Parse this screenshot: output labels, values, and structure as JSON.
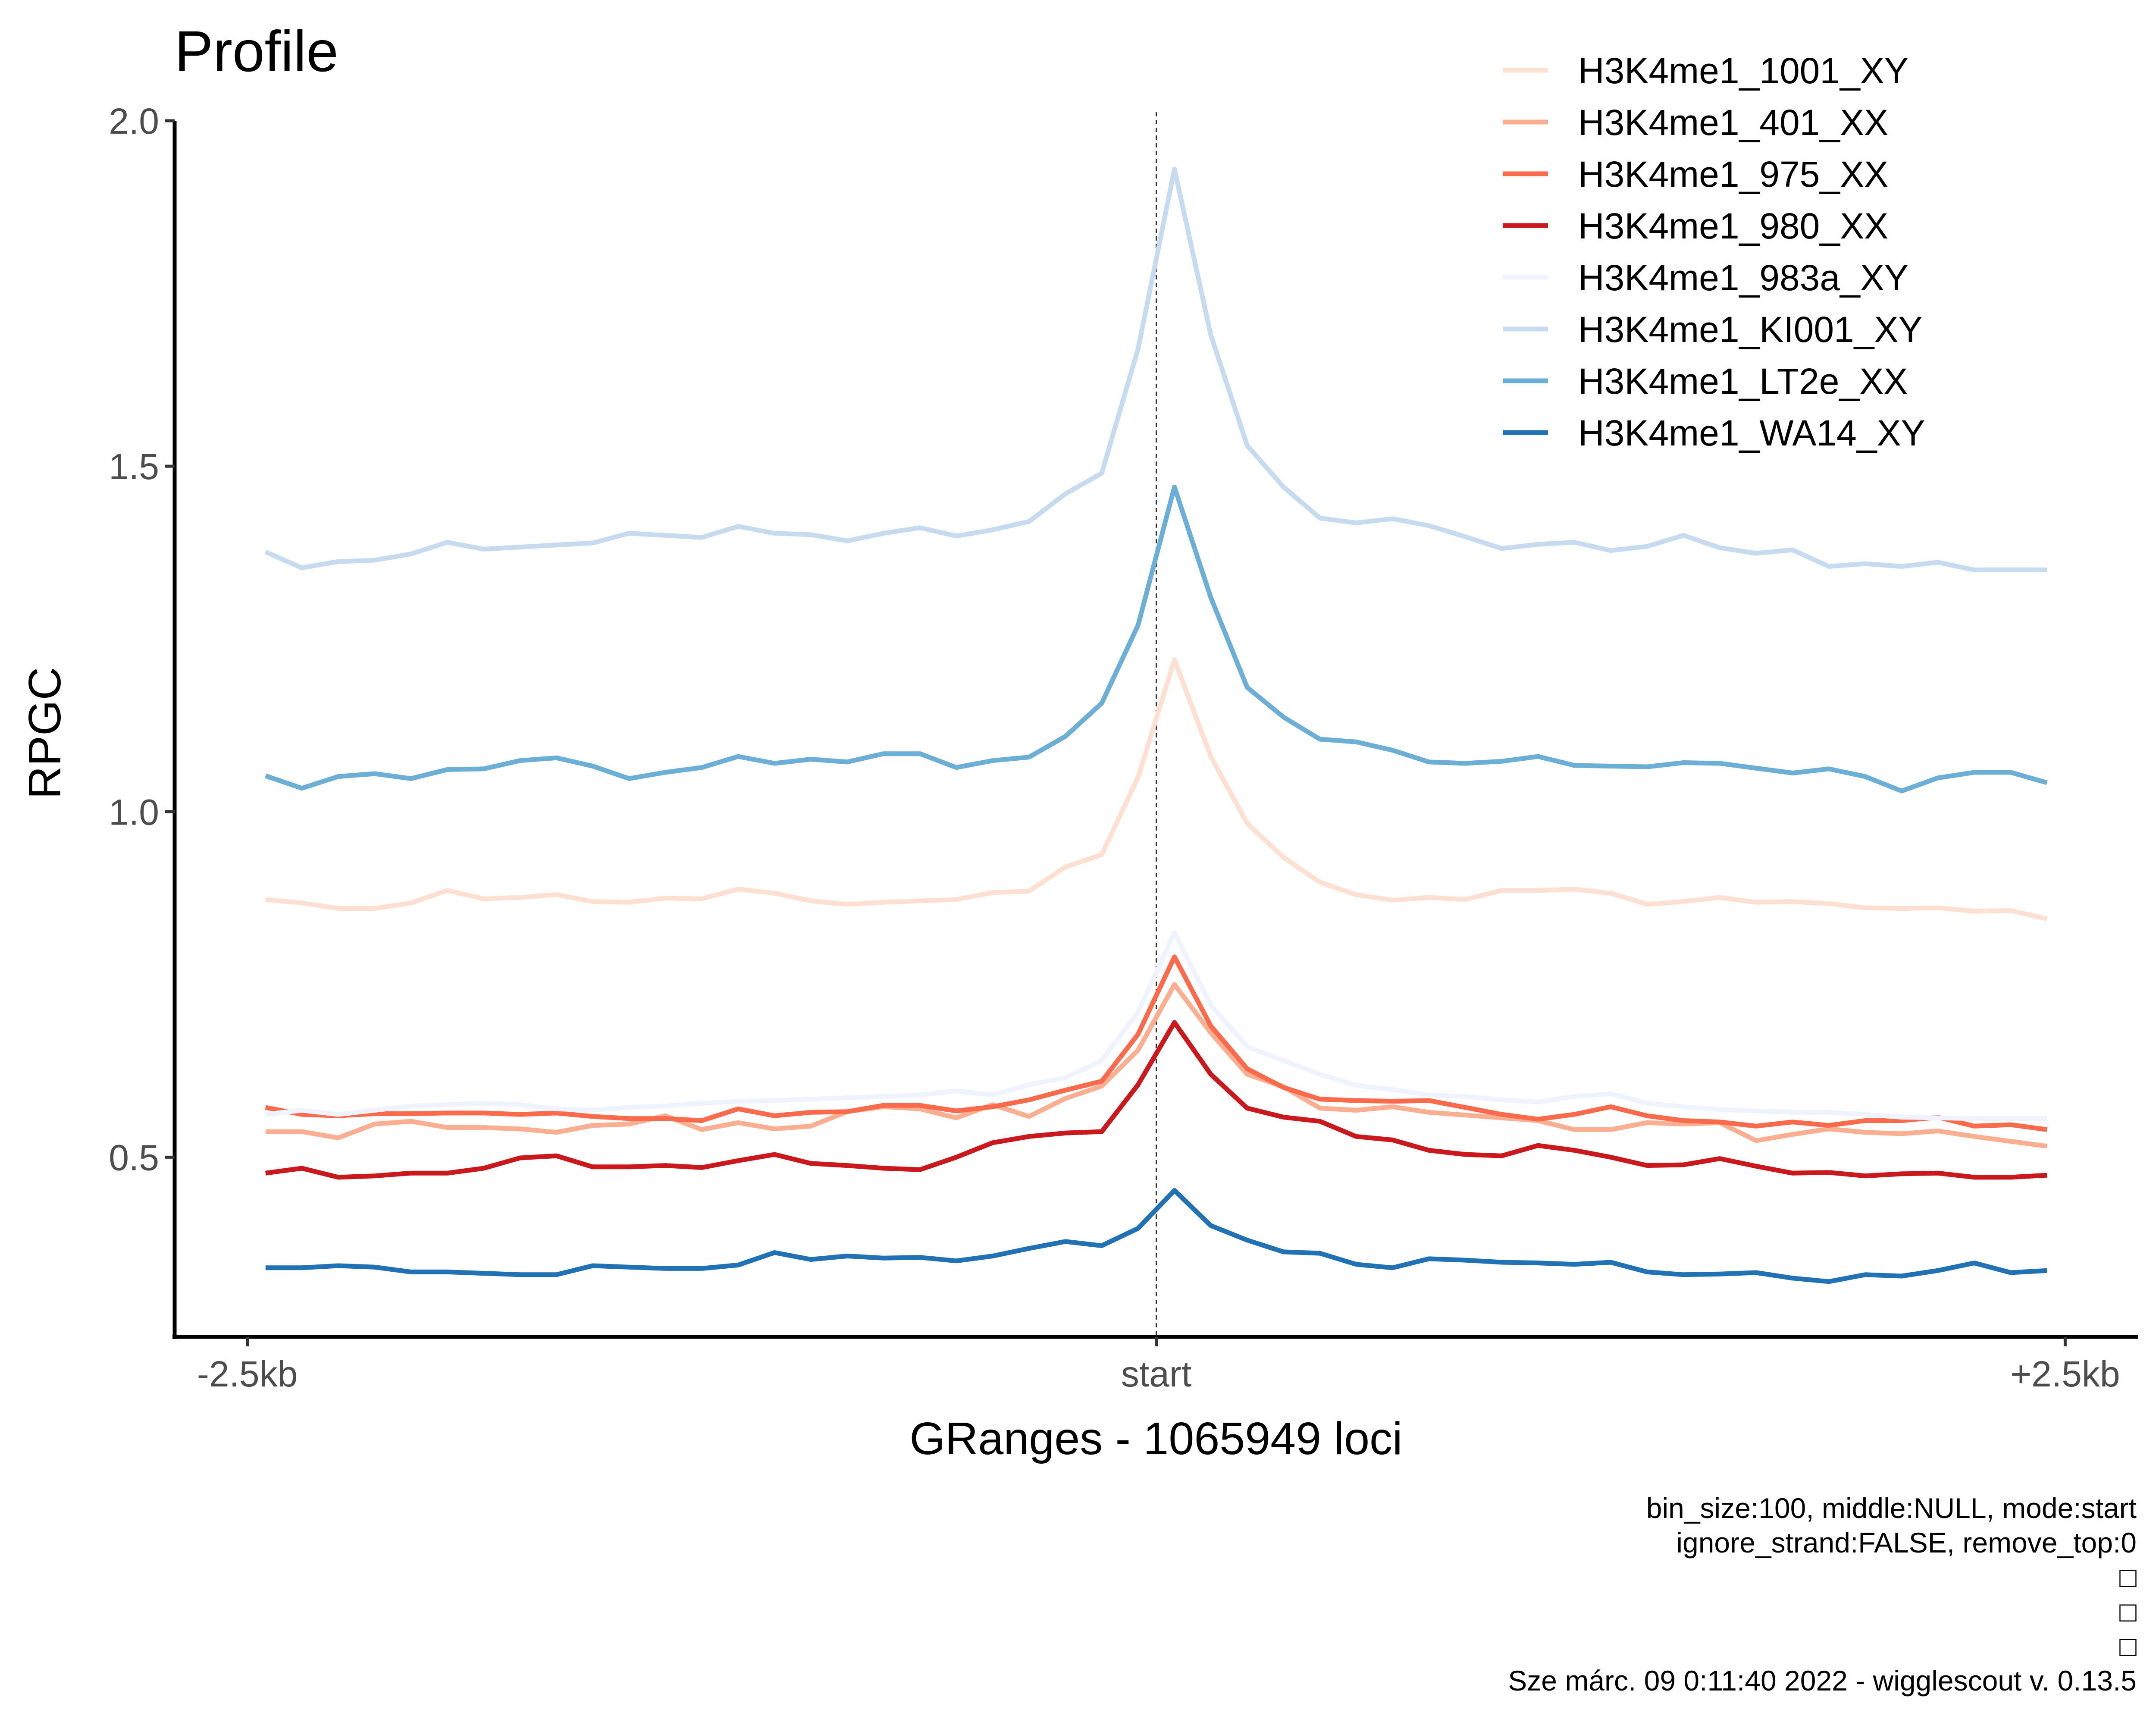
{
  "chart_data": {
    "type": "line",
    "title": "Profile",
    "xlabel": "GRanges - 1065949 loci",
    "ylabel": "RPGC",
    "x_ticks": [
      {
        "label": "-2.5kb",
        "value": -2500
      },
      {
        "label": "start",
        "value": 0
      },
      {
        "label": "+2.5kb",
        "value": 2500
      }
    ],
    "y_ticks": [
      {
        "label": "0.5",
        "value": 0.5
      },
      {
        "label": "1.0",
        "value": 1.0
      },
      {
        "label": "1.5",
        "value": 1.5
      },
      {
        "label": "2.0",
        "value": 2.0
      }
    ],
    "xlim": [
      -2700,
      2700
    ],
    "ylim": [
      0.24,
      2.0
    ],
    "vline_x": 0,
    "grid": false,
    "legend_position": "top-right",
    "x": [
      -2450,
      -2350,
      -2250,
      -2150,
      -2050,
      -1950,
      -1850,
      -1750,
      -1650,
      -1550,
      -1450,
      -1350,
      -1250,
      -1150,
      -1050,
      -950,
      -850,
      -750,
      -650,
      -550,
      -450,
      -350,
      -250,
      -150,
      -50,
      50,
      150,
      250,
      350,
      450,
      550,
      650,
      750,
      850,
      950,
      1050,
      1150,
      1250,
      1350,
      1450,
      1550,
      1650,
      1750,
      1850,
      1950,
      2050,
      2150,
      2250,
      2350,
      2450
    ],
    "series": [
      {
        "name": "H3K4me1_1001_XY",
        "color": "#fee0d2",
        "values": [
          0.873,
          0.868,
          0.86,
          0.86,
          0.868,
          0.886,
          0.874,
          0.876,
          0.88,
          0.87,
          0.869,
          0.875,
          0.874,
          0.888,
          0.882,
          0.871,
          0.866,
          0.869,
          0.871,
          0.873,
          0.883,
          0.885,
          0.92,
          0.938,
          1.05,
          1.22,
          1.08,
          0.983,
          0.934,
          0.898,
          0.88,
          0.872,
          0.876,
          0.873,
          0.886,
          0.886,
          0.888,
          0.882,
          0.866,
          0.87,
          0.876,
          0.869,
          0.87,
          0.867,
          0.861,
          0.86,
          0.861,
          0.856,
          0.857,
          0.845
        ]
      },
      {
        "name": "H3K4me1_401_XX",
        "color": "#fcae91",
        "values": [
          0.537,
          0.537,
          0.528,
          0.548,
          0.552,
          0.543,
          0.543,
          0.541,
          0.536,
          0.546,
          0.548,
          0.56,
          0.54,
          0.55,
          0.541,
          0.545,
          0.566,
          0.573,
          0.57,
          0.557,
          0.576,
          0.559,
          0.585,
          0.603,
          0.655,
          0.75,
          0.68,
          0.62,
          0.602,
          0.571,
          0.568,
          0.573,
          0.565,
          0.561,
          0.557,
          0.553,
          0.54,
          0.54,
          0.55,
          0.548,
          0.55,
          0.524,
          0.533,
          0.541,
          0.536,
          0.534,
          0.538,
          0.53,
          0.523,
          0.516
        ]
      },
      {
        "name": "H3K4me1_975_XX",
        "color": "#fb6a4a",
        "values": [
          0.572,
          0.562,
          0.56,
          0.563,
          0.563,
          0.564,
          0.564,
          0.562,
          0.564,
          0.559,
          0.556,
          0.556,
          0.553,
          0.57,
          0.56,
          0.565,
          0.566,
          0.575,
          0.575,
          0.567,
          0.573,
          0.583,
          0.597,
          0.61,
          0.678,
          0.79,
          0.69,
          0.628,
          0.601,
          0.584,
          0.582,
          0.581,
          0.582,
          0.572,
          0.562,
          0.555,
          0.562,
          0.573,
          0.56,
          0.553,
          0.551,
          0.545,
          0.551,
          0.546,
          0.553,
          0.553,
          0.558,
          0.545,
          0.547,
          0.54
        ]
      },
      {
        "name": "H3K4me1_980_XX",
        "color": "#cb181d",
        "values": [
          0.477,
          0.484,
          0.471,
          0.473,
          0.477,
          0.477,
          0.484,
          0.499,
          0.502,
          0.486,
          0.486,
          0.488,
          0.485,
          0.495,
          0.504,
          0.491,
          0.488,
          0.484,
          0.482,
          0.5,
          0.521,
          0.53,
          0.535,
          0.537,
          0.605,
          0.695,
          0.62,
          0.571,
          0.558,
          0.552,
          0.53,
          0.525,
          0.51,
          0.504,
          0.502,
          0.517,
          0.51,
          0.5,
          0.488,
          0.489,
          0.498,
          0.487,
          0.477,
          0.478,
          0.473,
          0.476,
          0.477,
          0.471,
          0.471,
          0.474
        ]
      },
      {
        "name": "H3K4me1_983a_XY",
        "color": "#eff3ff",
        "values": [
          0.562,
          0.568,
          0.562,
          0.568,
          0.574,
          0.576,
          0.578,
          0.576,
          0.57,
          0.568,
          0.572,
          0.574,
          0.578,
          0.581,
          0.582,
          0.584,
          0.586,
          0.588,
          0.59,
          0.596,
          0.59,
          0.605,
          0.615,
          0.64,
          0.71,
          0.825,
          0.72,
          0.66,
          0.64,
          0.62,
          0.604,
          0.598,
          0.59,
          0.588,
          0.583,
          0.58,
          0.588,
          0.592,
          0.578,
          0.573,
          0.569,
          0.567,
          0.565,
          0.565,
          0.562,
          0.558,
          0.557,
          0.556,
          0.556,
          0.556
        ]
      },
      {
        "name": "H3K4me1_KI001_XY",
        "color": "#c6dbef",
        "values": [
          1.376,
          1.353,
          1.362,
          1.364,
          1.373,
          1.39,
          1.38,
          1.383,
          1.386,
          1.389,
          1.403,
          1.4,
          1.397,
          1.413,
          1.403,
          1.401,
          1.392,
          1.403,
          1.411,
          1.399,
          1.408,
          1.42,
          1.46,
          1.49,
          1.67,
          1.93,
          1.69,
          1.53,
          1.47,
          1.425,
          1.418,
          1.424,
          1.414,
          1.398,
          1.381,
          1.387,
          1.39,
          1.378,
          1.384,
          1.4,
          1.382,
          1.374,
          1.379,
          1.355,
          1.359,
          1.355,
          1.361,
          1.35,
          1.35,
          1.35
        ]
      },
      {
        "name": "H3K4me1_LT2e_XX",
        "color": "#6baed6",
        "values": [
          1.052,
          1.034,
          1.051,
          1.055,
          1.048,
          1.061,
          1.062,
          1.074,
          1.078,
          1.066,
          1.048,
          1.057,
          1.064,
          1.08,
          1.07,
          1.076,
          1.072,
          1.084,
          1.084,
          1.064,
          1.074,
          1.079,
          1.109,
          1.157,
          1.27,
          1.47,
          1.31,
          1.18,
          1.137,
          1.105,
          1.101,
          1.089,
          1.072,
          1.07,
          1.073,
          1.08,
          1.067,
          1.066,
          1.065,
          1.071,
          1.07,
          1.063,
          1.056,
          1.062,
          1.051,
          1.03,
          1.049,
          1.057,
          1.057,
          1.042
        ]
      },
      {
        "name": "H3K4me1_WA14_XY",
        "color": "#2171b5",
        "values": [
          0.34,
          0.34,
          0.343,
          0.341,
          0.334,
          0.334,
          0.332,
          0.33,
          0.33,
          0.343,
          0.341,
          0.339,
          0.339,
          0.344,
          0.362,
          0.352,
          0.357,
          0.354,
          0.355,
          0.35,
          0.357,
          0.368,
          0.378,
          0.372,
          0.397,
          0.452,
          0.401,
          0.38,
          0.363,
          0.361,
          0.345,
          0.34,
          0.353,
          0.351,
          0.348,
          0.347,
          0.345,
          0.348,
          0.334,
          0.33,
          0.331,
          0.333,
          0.325,
          0.32,
          0.33,
          0.328,
          0.336,
          0.347,
          0.333,
          0.336
        ]
      }
    ],
    "caption_lines": [
      "bin_size:100, middle:NULL, mode:start",
      "ignore_strand:FALSE, remove_top:0",
      "□",
      "□",
      "□",
      "Sze márc. 09 0:11:40 2022 - wigglescout v. 0.13.5"
    ]
  }
}
